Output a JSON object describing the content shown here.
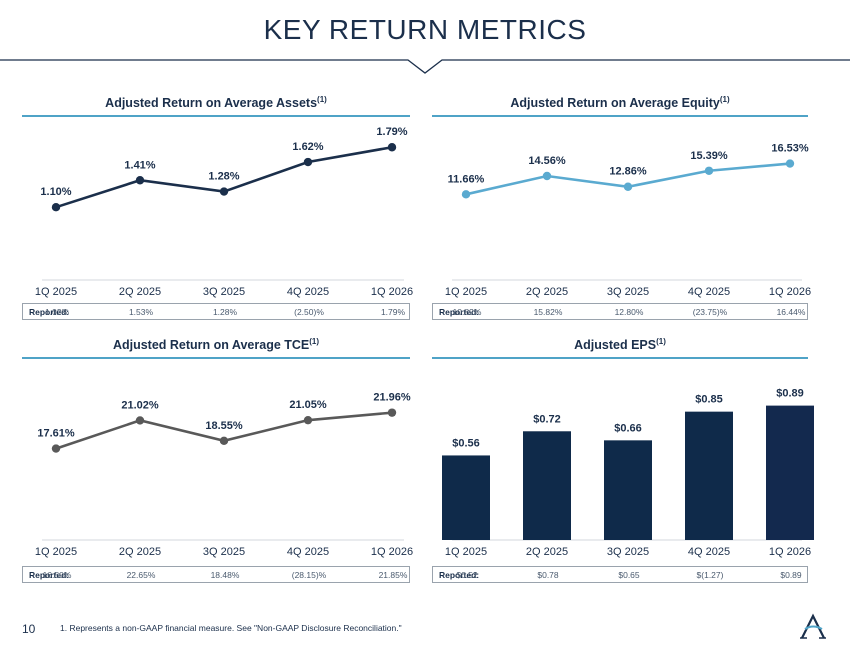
{
  "page": {
    "title": "KEY RETURN METRICS",
    "page_number": "10",
    "footnote": "1. Represents a non-GAAP financial measure. See \"Non-GAAP Disclosure Reconciliation.\"",
    "reported_label": "Reported:"
  },
  "colors": {
    "navy": "#1b2f4b",
    "light_blue": "#5aaad0",
    "gray_line": "#595959",
    "bar_navy": "#0f2a4a",
    "accent_rule": "#4fa3c7"
  },
  "chart_data": [
    {
      "id": "roaa",
      "type": "line",
      "title": "Adjusted Return on Average Assets",
      "title_sup": "(1)",
      "categories": [
        "1Q 2025",
        "2Q 2025",
        "3Q 2025",
        "4Q 2025",
        "1Q 2026"
      ],
      "values": [
        1.1,
        1.41,
        1.28,
        1.62,
        1.79
      ],
      "labels": [
        "1.10%",
        "1.41%",
        "1.28%",
        "1.62%",
        "1.79%"
      ],
      "ylim": [
        0.4,
        2.0
      ],
      "color": "#1b2f4b",
      "reported": [
        "1.02%",
        "1.53%",
        "1.28%",
        "(2.50)%",
        "1.79%"
      ]
    },
    {
      "id": "roae",
      "type": "line",
      "title": "Adjusted Return on Average Equity",
      "title_sup": "(1)",
      "categories": [
        "1Q 2025",
        "2Q 2025",
        "3Q 2025",
        "4Q 2025",
        "1Q 2026"
      ],
      "values": [
        11.66,
        14.56,
        12.86,
        15.39,
        16.53
      ],
      "labels": [
        "11.66%",
        "14.56%",
        "12.86%",
        "15.39%",
        "16.53%"
      ],
      "ylim": [
        0,
        22
      ],
      "color": "#5aaad0",
      "reported": [
        "10.82%",
        "15.82%",
        "12.80%",
        "(23.75)%",
        "16.44%"
      ]
    },
    {
      "id": "rotce",
      "type": "line",
      "title": "Adjusted Return on Average TCE",
      "title_sup": "(1)",
      "categories": [
        "1Q 2025",
        "2Q 2025",
        "3Q 2025",
        "4Q 2025",
        "1Q 2026"
      ],
      "values": [
        17.61,
        21.02,
        18.55,
        21.05,
        21.96
      ],
      "labels": [
        "17.61%",
        "21.02%",
        "18.55%",
        "21.05%",
        "21.96%"
      ],
      "ylim": [
        8,
        27
      ],
      "color": "#595959",
      "reported": [
        "16.50%",
        "22.65%",
        "18.48%",
        "(28.15)%",
        "21.85%"
      ]
    },
    {
      "id": "eps",
      "type": "bar",
      "title": "Adjusted EPS",
      "title_sup": "(1)",
      "categories": [
        "1Q 2025",
        "2Q 2025",
        "3Q 2025",
        "4Q 2025",
        "1Q 2026"
      ],
      "values": [
        0.56,
        0.72,
        0.66,
        0.85,
        0.89
      ],
      "labels": [
        "$0.56",
        "$0.72",
        "$0.66",
        "$0.85",
        "$0.89"
      ],
      "ylim": [
        0,
        1.0
      ],
      "color": "#0f2a4a",
      "reported": [
        "$0.52",
        "$0.78",
        "$0.65",
        "$(1.27)",
        "$0.89"
      ]
    }
  ]
}
